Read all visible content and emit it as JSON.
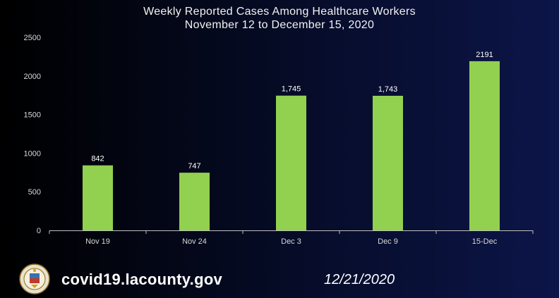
{
  "chart_data": {
    "type": "bar",
    "title": "Weekly Reported Cases Among Healthcare Workers",
    "subtitle": "November 12 to December 15, 2020",
    "categories": [
      "Nov 19",
      "Nov 24",
      "Dec 3",
      "Dec 9",
      "15-Dec"
    ],
    "values": [
      842,
      747,
      1745,
      1743,
      2191
    ],
    "data_labels": [
      "842",
      "747",
      "1,745",
      "1,743",
      "2191"
    ],
    "ylim": [
      0,
      2500
    ],
    "yticks": [
      "0",
      "500",
      "1000",
      "1500",
      "2000",
      "2500"
    ],
    "ytick_values": [
      0,
      500,
      1000,
      1500,
      2000,
      2500
    ],
    "xlabel": "",
    "ylabel": "",
    "grid": false,
    "bar_color": "#92d050"
  },
  "footer": {
    "url": "covid19.lacounty.gov",
    "date": "12/21/2020"
  }
}
